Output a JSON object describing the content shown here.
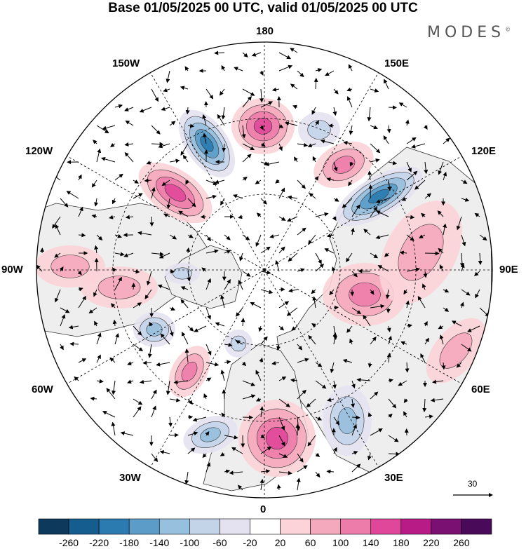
{
  "title": "Base 01/05/2025 00 UTC, valid 01/05/2025 00 UTC",
  "logo": "MODES",
  "logo_mark": "©",
  "longitude_labels": {
    "lon_180": "180",
    "lon_150e": "150E",
    "lon_120e": "120E",
    "lon_90e": "90E",
    "lon_60e": "60E",
    "lon_30e": "30E",
    "lon_0": "0",
    "lon_30w": "30W",
    "lon_60w": "60W",
    "lon_90w": "90W",
    "lon_120w": "120W",
    "lon_150w": "150W"
  },
  "reference_vector": "30",
  "colorbar": {
    "labels": [
      "-260",
      "-220",
      "-180",
      "-140",
      "-100",
      "-60",
      "-20",
      "20",
      "60",
      "100",
      "140",
      "180",
      "220",
      "260"
    ],
    "colors": [
      "#0d3a5c",
      "#155d8e",
      "#2b7bb0",
      "#5b9cc9",
      "#97bfde",
      "#c3d4e9",
      "#e4e2f0",
      "#ffffff",
      "#fbd3d8",
      "#f5a9bd",
      "#ee7cab",
      "#e0479a",
      "#b81a86",
      "#7a1071",
      "#4a0a5a"
    ]
  },
  "colors": {
    "land": "#eeeeee",
    "coast": "#333333",
    "grid": "#000000"
  }
}
